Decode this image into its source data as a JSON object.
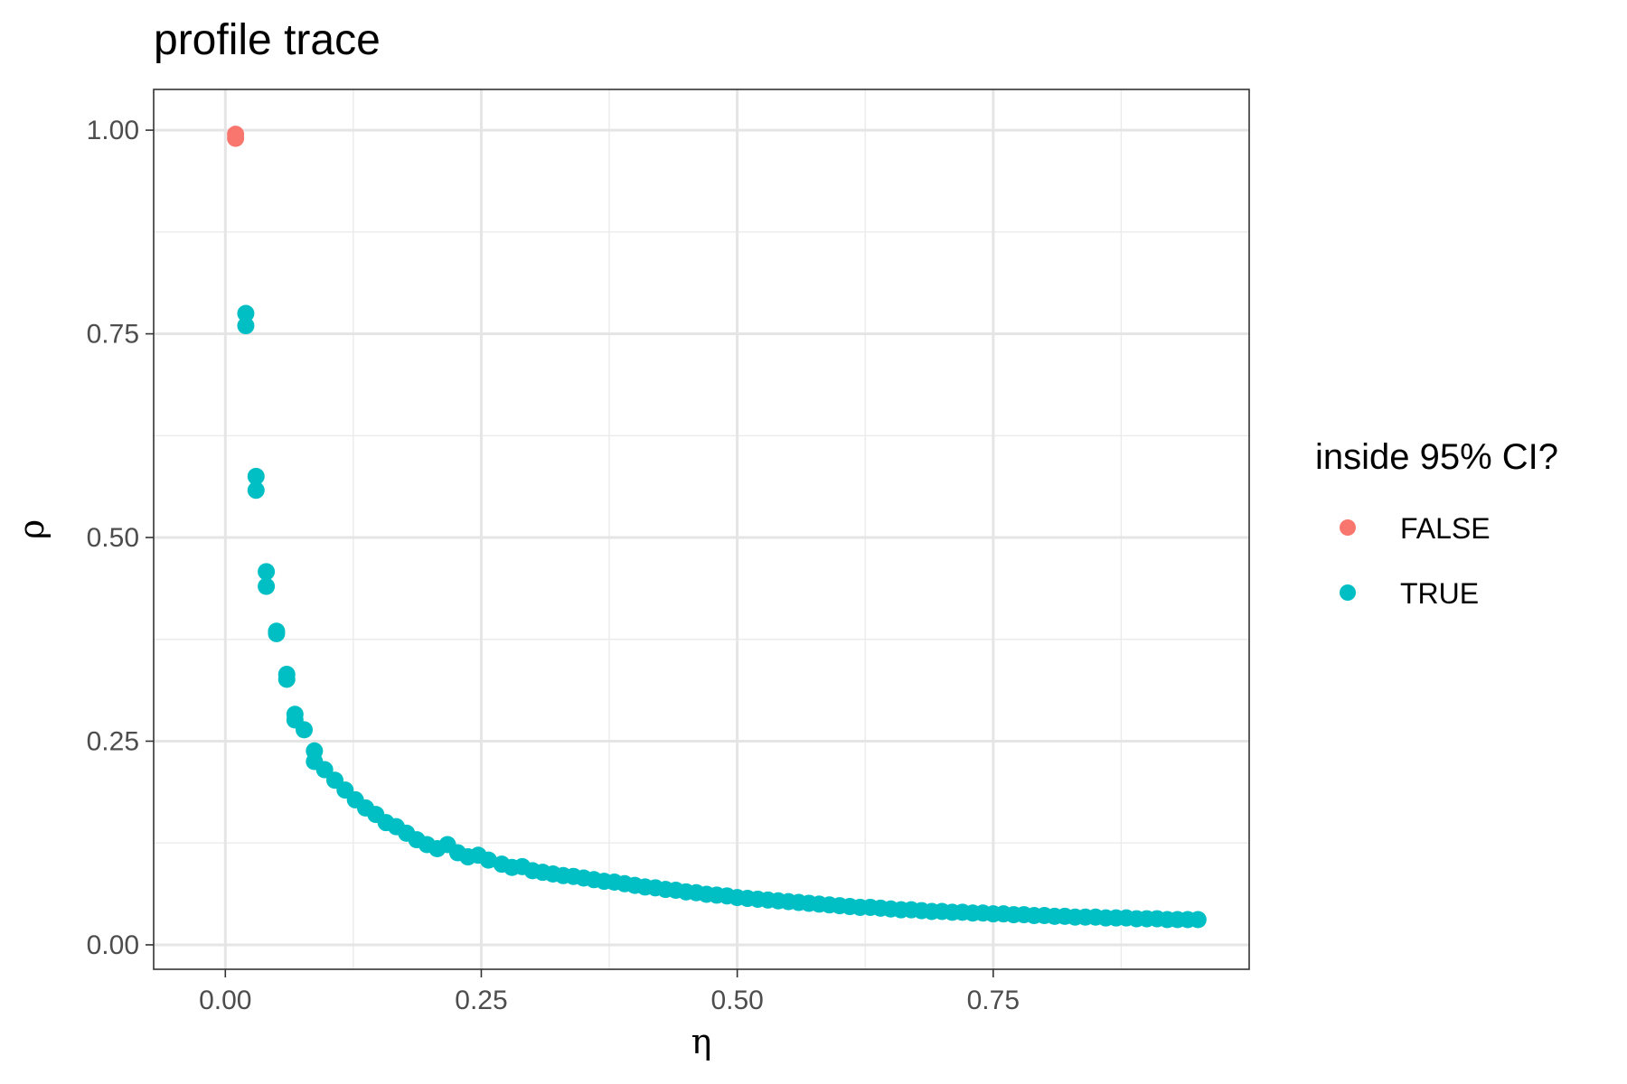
{
  "chart_data": {
    "type": "scatter",
    "title": "profile trace",
    "xlabel": "η",
    "ylabel": "ρ",
    "xlim": [
      -0.07,
      1.0
    ],
    "ylim": [
      -0.03,
      1.05
    ],
    "xticks": [
      0.0,
      0.25,
      0.5,
      0.75
    ],
    "xtick_labels": [
      "0.00",
      "0.25",
      "0.50",
      "0.75"
    ],
    "yticks": [
      0.0,
      0.25,
      0.5,
      0.75,
      1.0
    ],
    "ytick_labels": [
      "0.00",
      "0.25",
      "0.50",
      "0.75",
      "1.00"
    ],
    "grid": true,
    "legend": {
      "title": "inside 95% CI?",
      "placement": "right",
      "entries": [
        {
          "label": "FALSE",
          "color": "#F8766D"
        },
        {
          "label": "TRUE",
          "color": "#00BFC4"
        }
      ]
    },
    "series": [
      {
        "name": "FALSE",
        "color": "#F8766D",
        "points": [
          [
            0.01,
            0.99
          ],
          [
            0.01,
            0.995
          ]
        ]
      },
      {
        "name": "TRUE",
        "color": "#00BFC4",
        "points": [
          [
            0.02,
            0.775
          ],
          [
            0.02,
            0.76
          ],
          [
            0.03,
            0.575
          ],
          [
            0.03,
            0.558
          ],
          [
            0.04,
            0.458
          ],
          [
            0.04,
            0.44
          ],
          [
            0.05,
            0.385
          ],
          [
            0.05,
            0.382
          ],
          [
            0.06,
            0.332
          ],
          [
            0.06,
            0.326
          ],
          [
            0.068,
            0.283
          ],
          [
            0.068,
            0.276
          ],
          [
            0.077,
            0.264
          ],
          [
            0.087,
            0.238
          ],
          [
            0.087,
            0.225
          ],
          [
            0.097,
            0.215
          ],
          [
            0.107,
            0.202
          ],
          [
            0.117,
            0.19
          ],
          [
            0.127,
            0.178
          ],
          [
            0.137,
            0.168
          ],
          [
            0.147,
            0.16
          ],
          [
            0.157,
            0.15
          ],
          [
            0.167,
            0.145
          ],
          [
            0.177,
            0.137
          ],
          [
            0.187,
            0.129
          ],
          [
            0.197,
            0.123
          ],
          [
            0.207,
            0.118
          ],
          [
            0.217,
            0.123
          ],
          [
            0.227,
            0.113
          ],
          [
            0.237,
            0.108
          ],
          [
            0.247,
            0.11
          ],
          [
            0.257,
            0.104
          ],
          [
            0.27,
            0.099
          ],
          [
            0.28,
            0.095
          ],
          [
            0.29,
            0.096
          ],
          [
            0.3,
            0.091
          ],
          [
            0.31,
            0.089
          ],
          [
            0.32,
            0.087
          ],
          [
            0.33,
            0.085
          ],
          [
            0.34,
            0.084
          ],
          [
            0.35,
            0.082
          ],
          [
            0.36,
            0.08
          ],
          [
            0.37,
            0.078
          ],
          [
            0.38,
            0.077
          ],
          [
            0.39,
            0.075
          ],
          [
            0.4,
            0.073
          ],
          [
            0.41,
            0.071
          ],
          [
            0.42,
            0.07
          ],
          [
            0.43,
            0.068
          ],
          [
            0.44,
            0.067
          ],
          [
            0.45,
            0.065
          ],
          [
            0.46,
            0.064
          ],
          [
            0.47,
            0.062
          ],
          [
            0.48,
            0.061
          ],
          [
            0.49,
            0.06
          ],
          [
            0.5,
            0.058
          ],
          [
            0.51,
            0.057
          ],
          [
            0.52,
            0.056
          ],
          [
            0.53,
            0.055
          ],
          [
            0.54,
            0.054
          ],
          [
            0.55,
            0.053
          ],
          [
            0.56,
            0.052
          ],
          [
            0.57,
            0.051
          ],
          [
            0.58,
            0.05
          ],
          [
            0.59,
            0.049
          ],
          [
            0.6,
            0.048
          ],
          [
            0.61,
            0.047
          ],
          [
            0.62,
            0.046
          ],
          [
            0.63,
            0.046
          ],
          [
            0.64,
            0.045
          ],
          [
            0.65,
            0.044
          ],
          [
            0.66,
            0.043
          ],
          [
            0.67,
            0.043
          ],
          [
            0.68,
            0.042
          ],
          [
            0.69,
            0.041
          ],
          [
            0.7,
            0.041
          ],
          [
            0.71,
            0.04
          ],
          [
            0.72,
            0.04
          ],
          [
            0.73,
            0.039
          ],
          [
            0.74,
            0.039
          ],
          [
            0.75,
            0.038
          ],
          [
            0.76,
            0.038
          ],
          [
            0.77,
            0.037
          ],
          [
            0.78,
            0.037
          ],
          [
            0.79,
            0.036
          ],
          [
            0.8,
            0.036
          ],
          [
            0.81,
            0.035
          ],
          [
            0.82,
            0.035
          ],
          [
            0.83,
            0.034
          ],
          [
            0.84,
            0.034
          ],
          [
            0.85,
            0.034
          ],
          [
            0.86,
            0.033
          ],
          [
            0.87,
            0.033
          ],
          [
            0.88,
            0.033
          ],
          [
            0.89,
            0.032
          ],
          [
            0.9,
            0.032
          ],
          [
            0.91,
            0.032
          ],
          [
            0.92,
            0.031
          ],
          [
            0.93,
            0.031
          ],
          [
            0.94,
            0.031
          ],
          [
            0.95,
            0.031
          ]
        ]
      }
    ]
  }
}
